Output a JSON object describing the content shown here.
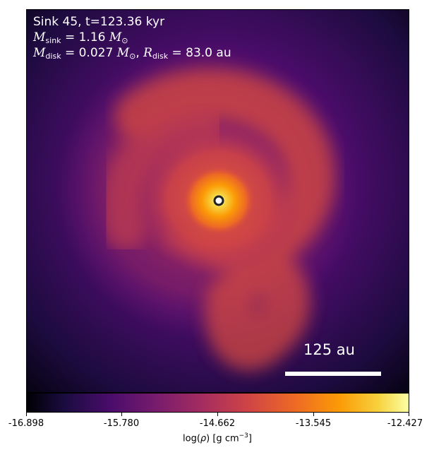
{
  "annotation": {
    "title": "Sink 45, t=123.36 kyr",
    "msink_symbol": "M",
    "msink_sub": "sink",
    "msink_value": " = 1.16 ",
    "msun": "M",
    "msun_sub": "⊙",
    "mdisk_symbol": "M",
    "mdisk_sub": "disk",
    "mdisk_value": " = 0.027 ",
    "rdisk_symbol": "R",
    "rdisk_sub": "disk",
    "rdisk_value": " = 83.0 au"
  },
  "scale_bar": {
    "label": "125 au"
  },
  "colorbar": {
    "ticks": [
      "-16.898",
      "-15.780",
      "-14.662",
      "-13.545",
      "-12.427"
    ],
    "label_prefix": "log(",
    "label_rho": "ρ",
    "label_mid": ") [g cm",
    "label_sup": "−3",
    "label_suffix": "]",
    "colormap": "inferno"
  }
}
